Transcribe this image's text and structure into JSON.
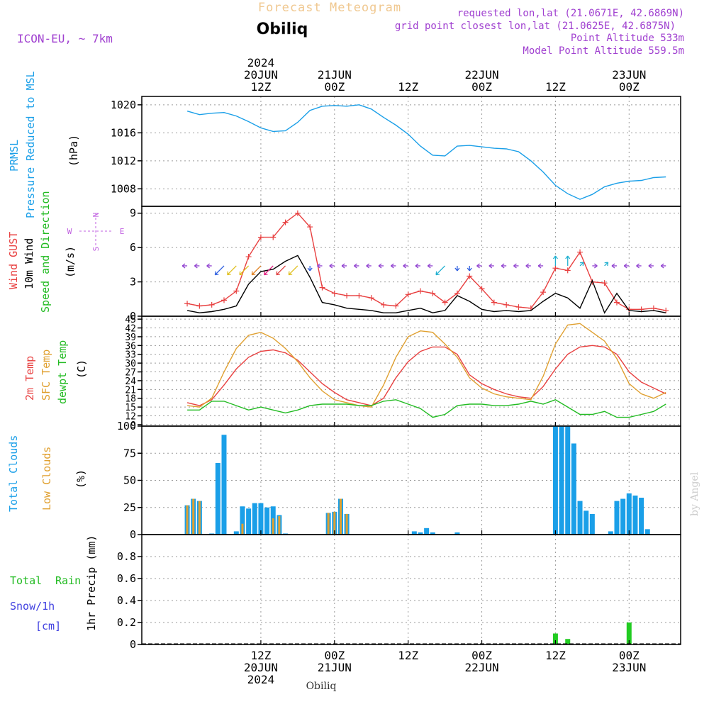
{
  "header": {
    "title": "Forecast Meteogram",
    "station": "Obiliq",
    "model": "ICON-EU, ~ 7km",
    "requested": "requested lon,lat (21.0671E, 42.6869N)",
    "grid_point": "grid point closest lon,lat (21.0625E, 42.6875N)",
    "point_altitude": "Point Altitude 533m",
    "model_altitude": "Model Point Altitude 559.5m",
    "footer_station": "Obiliq",
    "watermark": "by Angel"
  },
  "time_axis": {
    "top_labels": [
      {
        "h": 12,
        "lines": [
          "2024",
          "20JUN",
          "12Z"
        ]
      },
      {
        "h": 24,
        "lines": [
          "21JUN",
          "00Z"
        ]
      },
      {
        "h": 36,
        "lines": [
          "12Z"
        ]
      },
      {
        "h": 48,
        "lines": [
          "22JUN",
          "00Z"
        ]
      },
      {
        "h": 60,
        "lines": [
          "12Z"
        ]
      },
      {
        "h": 72,
        "lines": [
          "23JUN",
          "00Z"
        ]
      }
    ],
    "bottom_labels": [
      {
        "h": 12,
        "lines": [
          "12Z",
          "20JUN",
          "2024"
        ]
      },
      {
        "h": 24,
        "lines": [
          "00Z",
          "21JUN"
        ]
      },
      {
        "h": 36,
        "lines": [
          "12Z"
        ]
      },
      {
        "h": 48,
        "lines": [
          "00Z",
          "22JUN"
        ]
      },
      {
        "h": 60,
        "lines": [
          "12Z"
        ]
      },
      {
        "h": 72,
        "lines": [
          "00Z",
          "23JUN"
        ]
      }
    ]
  },
  "panels": {
    "pressure": {
      "labels": [
        "PRMSL",
        "Pressure Reduced to MSL",
        "(hPa)"
      ]
    },
    "wind": {
      "labels": [
        "Wind GUST",
        "10m Wind",
        "Speed and Direction",
        "(m/s)"
      ],
      "compass": {
        "n": "N",
        "s": "S",
        "w": "W",
        "e": "E"
      }
    },
    "temp": {
      "labels": [
        "2m Temp",
        "SFC Temp",
        "dewpt Temp",
        "(C)"
      ]
    },
    "clouds": {
      "labels": [
        "Total Clouds",
        "Low Clouds",
        "(%)"
      ]
    },
    "precip": {
      "labels": [
        "Total",
        "Rain",
        "Snow/1h",
        "[cm]",
        "1hr Precip (mm)"
      ]
    }
  },
  "colors": {
    "pressure": "#1a9fe8",
    "gust": "#e84040",
    "wind": "#000000",
    "t2m": "#e84040",
    "tsfc": "#e0a030",
    "dewpt": "#22bb22",
    "total_clouds": "#1a9fe8",
    "low_clouds": "#e0a030",
    "rain": "#22cc22",
    "snow": "#4040e0",
    "title": "#f0c890",
    "meta": "#a040d0",
    "compass": "#c060e0",
    "watermark": "#cccccc"
  },
  "chart_data": [
    {
      "type": "line",
      "title": "PRMSL Pressure Reduced to MSL",
      "ylabel": "(hPa)",
      "ylim": [
        1005.5,
        1021.2
      ],
      "yticks": [
        1008,
        1012,
        1016,
        1020
      ],
      "x_hours": [
        0,
        2,
        4,
        6,
        8,
        10,
        12,
        14,
        16,
        18,
        20,
        22,
        24,
        26,
        28,
        30,
        32,
        34,
        36,
        38,
        40,
        42,
        44,
        46,
        48,
        50,
        52,
        54,
        56,
        58,
        60,
        62,
        64,
        66,
        68,
        70,
        72,
        74,
        76,
        78
      ],
      "series": [
        {
          "name": "PRMSL",
          "values": [
            1019.1,
            1018.6,
            1018.8,
            1018.9,
            1018.4,
            1017.6,
            1016.7,
            1016.2,
            1016.3,
            1017.5,
            1019.2,
            1019.8,
            1019.9,
            1019.8,
            1020.0,
            1019.4,
            1018.2,
            1017.1,
            1015.8,
            1014.1,
            1012.8,
            1012.7,
            1014.1,
            1014.2,
            1014.0,
            1013.8,
            1013.7,
            1013.3,
            1012.0,
            1010.4,
            1008.5,
            1007.3,
            1006.5,
            1007.2,
            1008.3,
            1008.8,
            1009.1,
            1009.2,
            1009.6,
            1009.7
          ]
        }
      ]
    },
    {
      "type": "line",
      "title": "Wind GUST / 10m Wind Speed and Direction",
      "ylabel": "(m/s)",
      "ylim": [
        0,
        9.6
      ],
      "yticks": [
        0,
        3,
        6,
        9
      ],
      "x_hours": [
        0,
        2,
        4,
        6,
        8,
        10,
        12,
        14,
        16,
        18,
        20,
        22,
        24,
        26,
        28,
        30,
        32,
        34,
        36,
        38,
        40,
        42,
        44,
        46,
        48,
        50,
        52,
        54,
        56,
        58,
        60,
        62,
        64,
        66,
        68,
        70,
        72,
        74,
        76,
        78
      ],
      "series": [
        {
          "name": "Wind GUST",
          "values": [
            1.1,
            0.9,
            1.0,
            1.4,
            2.2,
            5.2,
            6.9,
            6.9,
            8.2,
            9.0,
            7.8,
            2.5,
            2.0,
            1.8,
            1.8,
            1.6,
            1.0,
            0.9,
            1.9,
            2.2,
            2.0,
            1.2,
            2.0,
            3.5,
            2.4,
            1.2,
            1.0,
            0.8,
            0.7,
            2.1,
            4.2,
            4.0,
            5.6,
            3.0,
            2.9,
            1.2,
            0.6,
            0.6,
            0.7,
            0.5
          ]
        },
        {
          "name": "10m Wind",
          "values": [
            0.5,
            0.3,
            0.4,
            0.6,
            0.9,
            2.8,
            3.9,
            4.1,
            4.8,
            5.3,
            3.4,
            1.2,
            1.0,
            0.7,
            0.6,
            0.5,
            0.3,
            0.3,
            0.5,
            0.7,
            0.3,
            0.5,
            1.8,
            1.3,
            0.6,
            0.4,
            0.5,
            0.4,
            0.5,
            1.3,
            2.0,
            1.6,
            0.7,
            3.1,
            0.3,
            2.0,
            0.5,
            0.4,
            0.5,
            0.3
          ]
        }
      ],
      "wind_barbs": [
        {
          "h": 0,
          "dir": "W",
          "color": "#9040d0"
        },
        {
          "h": 2,
          "dir": "W",
          "color": "#9040d0"
        },
        {
          "h": 4,
          "dir": "W",
          "color": "#9040d0"
        },
        {
          "h": 6,
          "dir": "SW",
          "color": "#3060e0"
        },
        {
          "h": 8,
          "dir": "SW",
          "color": "#e0c020"
        },
        {
          "h": 10,
          "dir": "SW",
          "color": "#e0c020"
        },
        {
          "h": 12,
          "dir": "SW",
          "color": "#e08020"
        },
        {
          "h": 14,
          "dir": "SW",
          "color": "#e02080"
        },
        {
          "h": 16,
          "dir": "SW",
          "color": "#e04040"
        },
        {
          "h": 18,
          "dir": "SW",
          "color": "#e0c020"
        },
        {
          "h": 20,
          "dir": "S",
          "color": "#3060e0"
        },
        {
          "h": 22,
          "dir": "W",
          "color": "#9040d0"
        },
        {
          "h": 24,
          "dir": "W",
          "color": "#9040d0"
        },
        {
          "h": 26,
          "dir": "W",
          "color": "#9040d0"
        },
        {
          "h": 28,
          "dir": "W",
          "color": "#9040d0"
        },
        {
          "h": 30,
          "dir": "W",
          "color": "#9040d0"
        },
        {
          "h": 32,
          "dir": "W",
          "color": "#9040d0"
        },
        {
          "h": 34,
          "dir": "W",
          "color": "#9040d0"
        },
        {
          "h": 36,
          "dir": "W",
          "color": "#9040d0"
        },
        {
          "h": 38,
          "dir": "W",
          "color": "#9040d0"
        },
        {
          "h": 40,
          "dir": "W",
          "color": "#9040d0"
        },
        {
          "h": 42,
          "dir": "SW",
          "color": "#20b0d0"
        },
        {
          "h": 44,
          "dir": "S",
          "color": "#3060e0"
        },
        {
          "h": 46,
          "dir": "S",
          "color": "#3060e0"
        },
        {
          "h": 48,
          "dir": "W",
          "color": "#9040d0"
        },
        {
          "h": 50,
          "dir": "W",
          "color": "#9040d0"
        },
        {
          "h": 52,
          "dir": "W",
          "color": "#9040d0"
        },
        {
          "h": 54,
          "dir": "W",
          "color": "#9040d0"
        },
        {
          "h": 56,
          "dir": "W",
          "color": "#9040d0"
        },
        {
          "h": 58,
          "dir": "W",
          "color": "#9040d0"
        },
        {
          "h": 60,
          "dir": "N",
          "color": "#20b0d0"
        },
        {
          "h": 62,
          "dir": "N",
          "color": "#20b0d0"
        },
        {
          "h": 64,
          "dir": "NE",
          "color": "#20b0d0"
        },
        {
          "h": 66,
          "dir": "E",
          "color": "#9040d0"
        },
        {
          "h": 68,
          "dir": "NE",
          "color": "#20b0d0"
        },
        {
          "h": 70,
          "dir": "W",
          "color": "#9040d0"
        },
        {
          "h": 72,
          "dir": "W",
          "color": "#9040d0"
        },
        {
          "h": 74,
          "dir": "W",
          "color": "#9040d0"
        },
        {
          "h": 76,
          "dir": "W",
          "color": "#9040d0"
        },
        {
          "h": 78,
          "dir": "W",
          "color": "#9040d0"
        }
      ]
    },
    {
      "type": "line",
      "title": "2m Temp / SFC Temp / dewpt Temp",
      "ylabel": "(C)",
      "ylim": [
        8.5,
        46
      ],
      "yticks": [
        9,
        12,
        15,
        18,
        21,
        24,
        27,
        30,
        33,
        36,
        39,
        42,
        45
      ],
      "x_hours": [
        0,
        2,
        4,
        6,
        8,
        10,
        12,
        14,
        16,
        18,
        20,
        22,
        24,
        26,
        28,
        30,
        32,
        34,
        36,
        38,
        40,
        42,
        44,
        46,
        48,
        50,
        52,
        54,
        56,
        58,
        60,
        62,
        64,
        66,
        68,
        70,
        72,
        74,
        76,
        78
      ],
      "series": [
        {
          "name": "2m Temp",
          "values": [
            16.5,
            15.5,
            17.5,
            22.5,
            28.0,
            32.0,
            34.0,
            34.5,
            33.5,
            31.0,
            27.0,
            23.0,
            20.0,
            17.5,
            16.5,
            15.5,
            18.0,
            25.0,
            30.5,
            34.0,
            35.5,
            35.5,
            33.0,
            26.0,
            23.0,
            21.0,
            19.5,
            18.5,
            18.0,
            22.0,
            28.0,
            33.0,
            35.5,
            36.0,
            35.5,
            33.0,
            27.0,
            23.5,
            21.5,
            19.5
          ]
        },
        {
          "name": "SFC Temp",
          "values": [
            15.5,
            15.0,
            18.0,
            27.0,
            35.0,
            39.5,
            40.5,
            38.5,
            35.0,
            30.5,
            25.0,
            20.5,
            17.5,
            16.5,
            15.5,
            15.0,
            22.5,
            32.0,
            39.0,
            41.0,
            40.5,
            36.5,
            32.0,
            25.0,
            21.5,
            19.5,
            18.5,
            18.0,
            17.5,
            25.5,
            36.5,
            43.0,
            43.5,
            40.5,
            37.5,
            31.5,
            23.0,
            19.5,
            18.0,
            20.0
          ]
        },
        {
          "name": "dewpt Temp",
          "values": [
            14.0,
            14.0,
            17.0,
            17.0,
            15.5,
            14.0,
            15.0,
            14.0,
            13.0,
            14.0,
            15.5,
            16.0,
            16.0,
            16.0,
            15.5,
            15.5,
            17.0,
            17.5,
            16.0,
            14.5,
            11.5,
            12.5,
            15.5,
            16.0,
            16.0,
            15.5,
            15.5,
            16.0,
            17.0,
            16.0,
            17.5,
            15.0,
            12.5,
            12.5,
            13.5,
            11.5,
            11.5,
            12.5,
            13.5,
            16.0
          ]
        }
      ]
    },
    {
      "type": "bar",
      "title": "Total Clouds / Low Clouds",
      "ylabel": "(%)",
      "ylim": [
        0,
        100
      ],
      "yticks": [
        0,
        25,
        50,
        75,
        100
      ],
      "x_hours": [
        0,
        1,
        2,
        3,
        4,
        5,
        6,
        7,
        8,
        9,
        10,
        11,
        12,
        13,
        14,
        15,
        16,
        17,
        18,
        19,
        20,
        21,
        22,
        23,
        24,
        25,
        26,
        27,
        28,
        29,
        30,
        31,
        32,
        33,
        34,
        35,
        36,
        37,
        38,
        39,
        40,
        41,
        42,
        43,
        44,
        45,
        46,
        47,
        48,
        49,
        50,
        51,
        52,
        53,
        54,
        55,
        56,
        57,
        58,
        59,
        60,
        61,
        62,
        63,
        64,
        65,
        66,
        67,
        68,
        69,
        70,
        71,
        72,
        73,
        74,
        75,
        76,
        77
      ],
      "series": [
        {
          "name": "Total Clouds",
          "values": [
            27,
            33,
            31,
            0,
            1,
            66,
            92,
            0,
            3,
            26,
            24,
            29,
            29,
            25,
            26,
            18,
            1,
            0,
            0,
            0,
            0,
            0,
            0,
            20,
            21,
            33,
            19,
            0,
            0,
            0,
            0,
            0,
            0,
            0,
            0,
            0,
            0,
            3,
            2,
            6,
            2,
            0,
            0,
            0,
            2,
            0,
            0,
            0,
            0,
            0,
            0,
            0,
            0,
            0,
            0,
            0,
            0,
            0,
            0,
            0,
            100,
            100,
            100,
            84,
            31,
            22,
            19,
            0,
            0,
            3,
            31,
            33,
            38,
            36,
            34,
            5,
            0,
            0
          ]
        },
        {
          "name": "Low Clouds",
          "values": [
            27,
            33,
            31,
            0,
            0,
            0,
            0,
            0,
            0,
            10,
            0,
            0,
            0,
            0,
            15,
            17,
            0,
            0,
            0,
            0,
            0,
            0,
            0,
            20,
            21,
            33,
            19,
            0,
            0,
            0,
            0,
            0,
            0,
            0,
            0,
            0,
            0,
            0,
            0,
            0,
            0,
            0,
            0,
            0,
            0,
            0,
            0,
            0,
            0,
            0,
            0,
            0,
            0,
            0,
            0,
            0,
            0,
            0,
            0,
            0,
            0,
            0,
            0,
            0,
            0,
            0,
            0,
            0,
            0,
            0,
            0,
            0,
            0,
            0,
            0,
            0,
            0,
            0
          ]
        }
      ]
    },
    {
      "type": "bar",
      "title": "1hr Precip (mm)",
      "ylabel": "1hr Precip (mm)",
      "ylim": [
        0,
        1.0
      ],
      "yticks": [
        0,
        0.2,
        0.4,
        0.6,
        0.8
      ],
      "tick_labels": [
        "0",
        "0.2",
        "0.4",
        "0.6",
        "0.8"
      ],
      "x_hours": [
        60,
        62,
        72
      ],
      "series": [
        {
          "name": "Total Rain",
          "values": [
            0.1,
            0.05,
            0.2
          ]
        }
      ]
    }
  ]
}
